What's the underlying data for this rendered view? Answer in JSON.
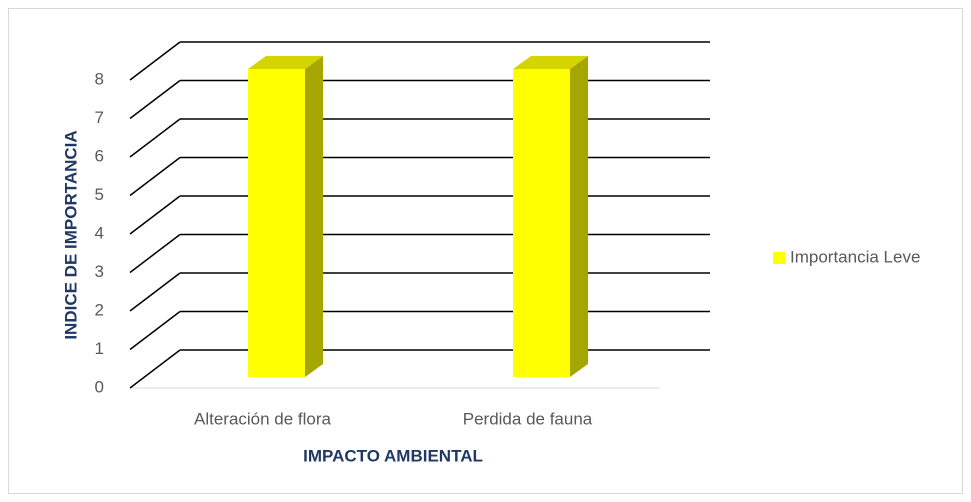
{
  "chart_data": {
    "type": "bar3d",
    "categories": [
      "Alteración de flora",
      "Perdida de fauna"
    ],
    "series": [
      {
        "name": "Importancia Leve",
        "color": "#ffff00",
        "values": [
          8,
          8
        ]
      }
    ],
    "ylim": [
      0,
      8
    ],
    "yticks": [
      0,
      1,
      2,
      3,
      4,
      5,
      6,
      7,
      8
    ],
    "grid": true,
    "xlabel": "IMPACTO AMBIENTAL",
    "ylabel": "INDICE DE IMPORTANCIA",
    "legend": "right"
  }
}
